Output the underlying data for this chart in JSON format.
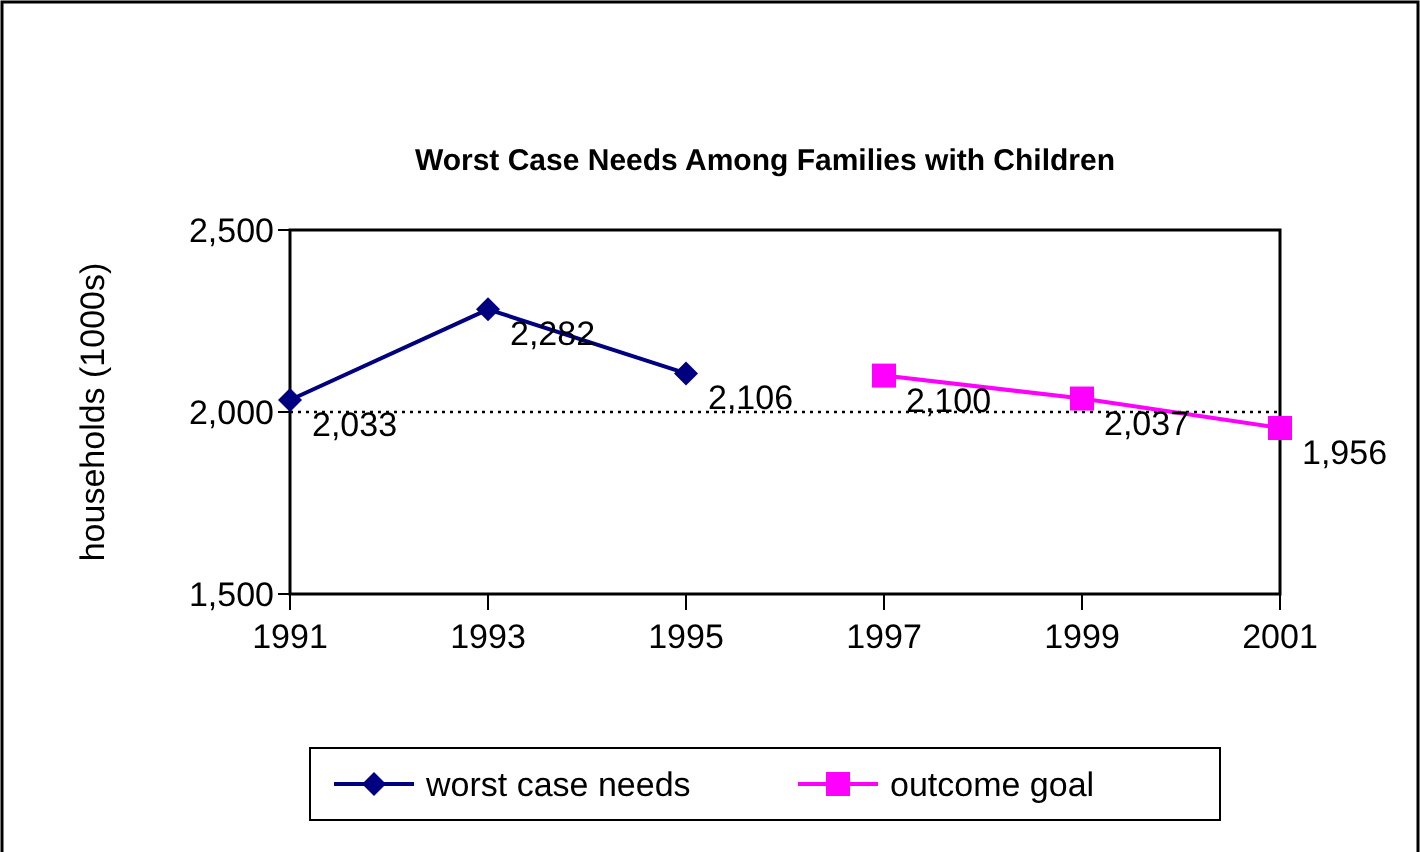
{
  "chart_data": {
    "type": "line",
    "title": "Worst Case Needs Among Families with Children",
    "ylabel": "households (1000s)",
    "series": [
      {
        "name": "worst case needs",
        "color": "#000080",
        "x": [
          1991,
          1993,
          1995
        ],
        "values": [
          2033,
          2282,
          2106
        ],
        "value_labels": [
          "2,033",
          "2,282",
          "2,106"
        ],
        "marker": "diamond"
      },
      {
        "name": "outcome goal",
        "color": "#ff00ff",
        "x": [
          1997,
          1999,
          2001
        ],
        "values": [
          2100,
          2037,
          1956
        ],
        "value_labels": [
          "2,100",
          "2,037",
          "1,956"
        ],
        "marker": "square"
      }
    ],
    "xlim": [
      1991,
      2001
    ],
    "xticks": [
      1991,
      1993,
      1995,
      1997,
      1999,
      2001
    ],
    "ylim": [
      1500,
      2500
    ],
    "yticks": [
      {
        "value": 1500,
        "label": "1,500"
      },
      {
        "value": 2000,
        "label": "2,000"
      },
      {
        "value": 2500,
        "label": "2,500"
      }
    ],
    "ref_lines": [
      {
        "axis": "y",
        "value": 2000,
        "color": "#000000",
        "line_style": "dotted"
      }
    ],
    "legend": "bottom",
    "grid": false
  }
}
